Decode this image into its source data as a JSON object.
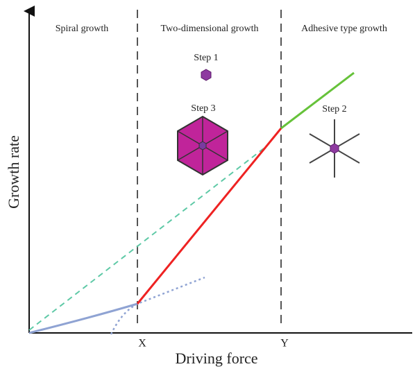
{
  "regions": [
    "Spiral growth",
    "Two-dimensional growth",
    "Adhesive type growth"
  ],
  "steps": [
    "Step 1",
    "Step 3",
    "Step 2"
  ],
  "axes": {
    "y_label": "Growth rate",
    "x_label": "Driving force",
    "x_marks": [
      "X",
      "Y"
    ]
  }
}
